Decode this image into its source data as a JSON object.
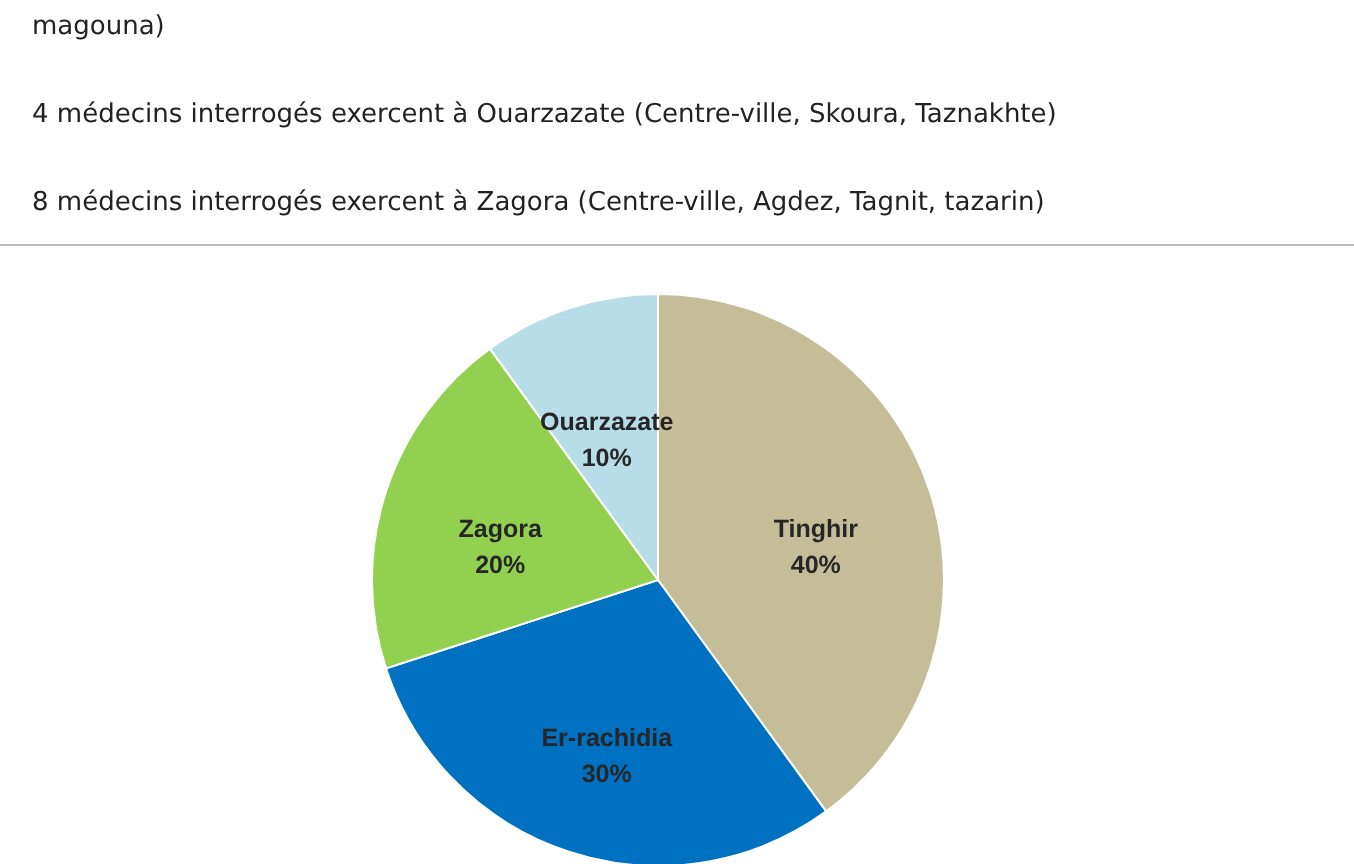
{
  "chart_data": {
    "type": "pie",
    "annotations": [
      "magouna)",
      "4 médecins interrogés exercent à Ouarzazate (Centre-ville, Skoura, Taznakhte)",
      "8 médecins interrogés exercent à Zagora (Centre-ville, Agdez, Tagnit, tazarin)"
    ],
    "categories": [
      "Tinghir",
      "Er-rachidia",
      "Zagora",
      "Ouarzazate"
    ],
    "values": [
      40,
      30,
      20,
      10
    ],
    "value_labels": [
      "40%",
      "30%",
      "20%",
      "10%"
    ],
    "colors": [
      "#c4bd97",
      "#0070c0",
      "#92d050",
      "#b7dde8"
    ]
  }
}
